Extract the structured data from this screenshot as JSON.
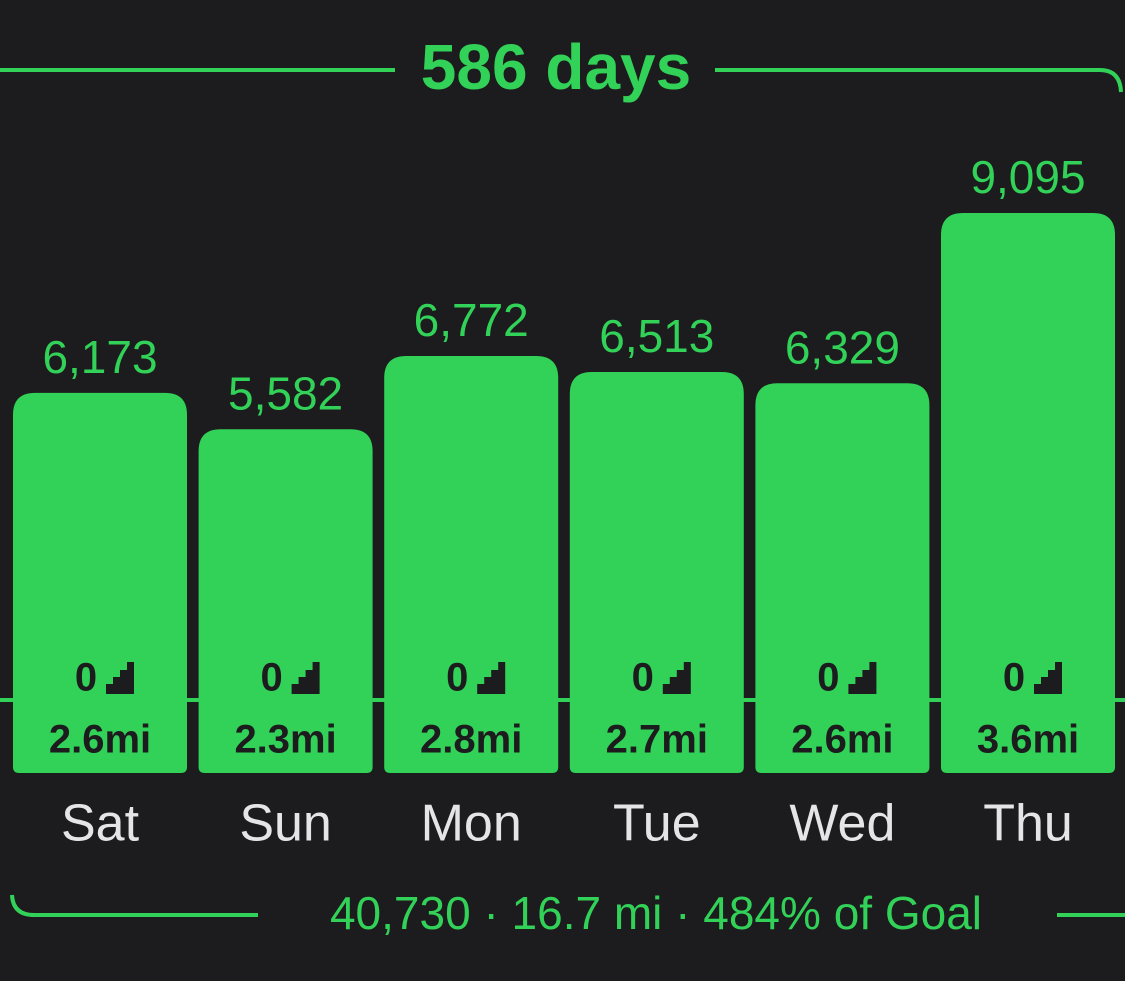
{
  "chart_data": {
    "type": "bar",
    "title": "586 days",
    "categories": [
      "Sat",
      "Sun",
      "Mon",
      "Tue",
      "Wed",
      "Thu"
    ],
    "values": [
      6173,
      5582,
      6772,
      6513,
      6329,
      9095
    ],
    "value_labels": [
      "6,173",
      "5,582",
      "6,772",
      "6,513",
      "6,329",
      "9,095"
    ],
    "flights": [
      0,
      0,
      0,
      0,
      0,
      0
    ],
    "distance_labels": [
      "2.6mi",
      "2.3mi",
      "2.8mi",
      "2.7mi",
      "2.6mi",
      "3.6mi"
    ],
    "summary": "40,730 · 16.7 mi · 484% of Goal",
    "color": "#32d158"
  }
}
